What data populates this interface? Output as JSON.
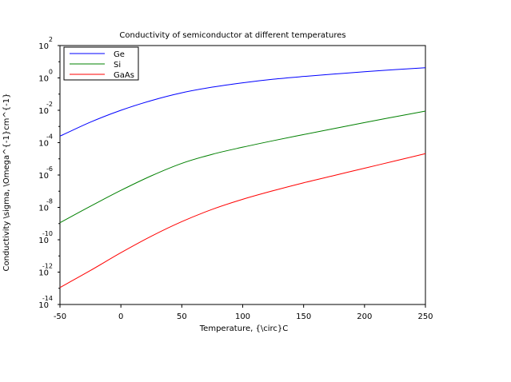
{
  "chart_data": {
    "type": "line",
    "title": "Conductivity of semiconductor at different temperatures",
    "xlabel": "Temperature, {\\circ}C",
    "ylabel": "Conductivity \\sigma, \\Omega^{-1}cm^{-1}",
    "xlim": [
      -50,
      250
    ],
    "ylim_log10": [
      -14,
      2
    ],
    "yscale": "log",
    "grid": false,
    "legend_position": "top-left",
    "x_ticks": [
      -50,
      0,
      50,
      100,
      150,
      200,
      250
    ],
    "x_tick_labels": [
      "-50",
      "0",
      "50",
      "100",
      "150",
      "200",
      "250"
    ],
    "y_tick_exponents": [
      -14,
      -12,
      -10,
      -8,
      -6,
      -4,
      -2,
      0,
      2
    ],
    "y_tick_base": "10",
    "y_tick_exp_labels": [
      "-14",
      "-12",
      "-10",
      "-8",
      "-6",
      "-4",
      "-2",
      "0",
      "2"
    ],
    "x": [
      -50,
      -25,
      0,
      25,
      50,
      75,
      100,
      125,
      150,
      175,
      200,
      225,
      250
    ],
    "series": [
      {
        "name": "Ge",
        "color": "#0000ff",
        "log10_values": [
          -3.6,
          -2.73,
          -2.0,
          -1.4,
          -0.92,
          -0.57,
          -0.3,
          -0.08,
          0.09,
          0.24,
          0.38,
          0.51,
          0.63
        ]
      },
      {
        "name": "Si",
        "color": "#008000",
        "log10_values": [
          -8.95,
          -7.93,
          -6.95,
          -6.05,
          -5.28,
          -4.72,
          -4.28,
          -3.88,
          -3.5,
          -3.13,
          -2.76,
          -2.4,
          -2.05
        ]
      },
      {
        "name": "GaAs",
        "color": "#ff0000",
        "log10_values": [
          -12.95,
          -11.9,
          -10.8,
          -9.78,
          -8.88,
          -8.12,
          -7.5,
          -6.97,
          -6.48,
          -6.03,
          -5.58,
          -5.13,
          -4.68
        ]
      }
    ]
  }
}
